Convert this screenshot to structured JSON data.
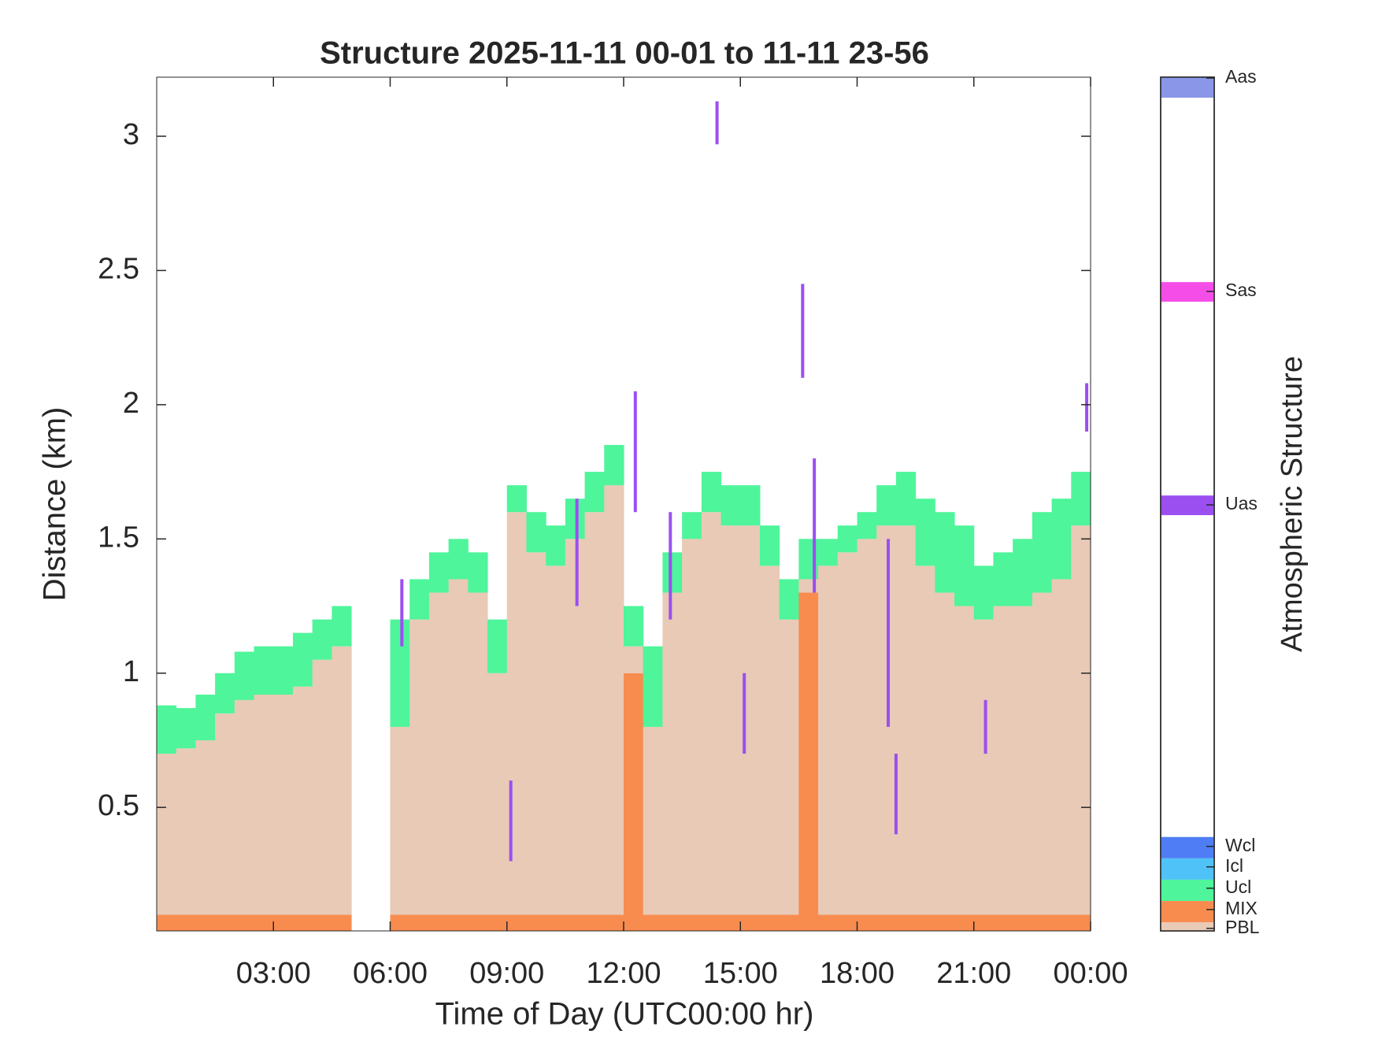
{
  "chart_data": {
    "type": "structure",
    "title": "Structure 2025-11-11 00-01 to 11-11 23-56",
    "x_label": "Time of Day (UTC00:00 hr)",
    "y_label": "Distance (km)",
    "colorbar_label": "Atmospheric Structure",
    "xlim": [
      0,
      24
    ],
    "xticks": [
      {
        "value": 3,
        "label": "03:00"
      },
      {
        "value": 6,
        "label": "06:00"
      },
      {
        "value": 9,
        "label": "09:00"
      },
      {
        "value": 12,
        "label": "12:00"
      },
      {
        "value": 15,
        "label": "15:00"
      },
      {
        "value": 18,
        "label": "18:00"
      },
      {
        "value": 21,
        "label": "21:00"
      },
      {
        "value": 24,
        "label": "00:00"
      }
    ],
    "ylim": [
      0.04,
      3.22
    ],
    "yticks": [
      0.5,
      1,
      1.5,
      2,
      2.5,
      3
    ],
    "bin_width": 0.5,
    "x": [
      0,
      0.5,
      1,
      1.5,
      2,
      2.5,
      3,
      3.5,
      4,
      4.5,
      5,
      5.5,
      6,
      6.5,
      7,
      7.5,
      8,
      8.5,
      9,
      9.5,
      10,
      10.5,
      11,
      11.5,
      12,
      12.5,
      13,
      13.5,
      14,
      14.5,
      15,
      15.5,
      16,
      16.5,
      17,
      17.5,
      18,
      18.5,
      19,
      19.5,
      20,
      20.5,
      21,
      21.5,
      22,
      22.5,
      23,
      23.5
    ],
    "series": [
      {
        "name": "MIX",
        "color": "#f88c4f",
        "values": [
          0.1,
          0.1,
          0.1,
          0.1,
          0.1,
          0.1,
          0.1,
          0.1,
          0.1,
          0.1,
          0,
          0,
          0.1,
          0.1,
          0.1,
          0.1,
          0.1,
          0.1,
          0.1,
          0.1,
          0.1,
          0.1,
          0.1,
          0.1,
          1.0,
          0.1,
          0.1,
          0.1,
          0.1,
          0.1,
          0.1,
          0.1,
          0.1,
          1.3,
          0.1,
          0.1,
          0.1,
          0.1,
          0.1,
          0.1,
          0.1,
          0.1,
          0.1,
          0.1,
          0.1,
          0.1,
          0.1,
          0.1
        ]
      },
      {
        "name": "PBL",
        "color": "#e8cab6",
        "values": [
          0.6,
          0.62,
          0.65,
          0.75,
          0.8,
          0.82,
          0.82,
          0.85,
          0.95,
          1.0,
          0,
          0,
          0.7,
          1.1,
          1.2,
          1.25,
          1.2,
          0.9,
          1.5,
          1.35,
          1.3,
          1.4,
          1.5,
          1.6,
          0.1,
          0.7,
          1.2,
          1.4,
          1.5,
          1.45,
          1.45,
          1.3,
          1.1,
          0.05,
          1.3,
          1.35,
          1.4,
          1.45,
          1.45,
          1.3,
          1.2,
          1.15,
          1.1,
          1.15,
          1.15,
          1.2,
          1.25,
          1.45
        ]
      },
      {
        "name": "Ucl",
        "color": "#4ef59a",
        "values": [
          0.18,
          0.15,
          0.17,
          0.15,
          0.18,
          0.18,
          0.18,
          0.2,
          0.15,
          0.15,
          0,
          0,
          0.4,
          0.15,
          0.15,
          0.15,
          0.15,
          0.2,
          0.1,
          0.15,
          0.15,
          0.15,
          0.15,
          0.15,
          0.15,
          0.3,
          0.15,
          0.1,
          0.15,
          0.15,
          0.15,
          0.15,
          0.15,
          0.15,
          0.1,
          0.1,
          0.1,
          0.15,
          0.2,
          0.25,
          0.3,
          0.3,
          0.2,
          0.2,
          0.25,
          0.3,
          0.3,
          0.2
        ]
      },
      {
        "name": "Uas",
        "color": "#9b4ff0",
        "x": [
          6.3,
          9.1,
          10.8,
          12.3,
          13.2,
          14.4,
          15.1,
          16.6,
          16.9,
          18.8,
          19.0,
          21.3,
          23.9
        ],
        "low": [
          1.1,
          0.3,
          1.25,
          1.6,
          1.2,
          2.97,
          0.7,
          2.1,
          1.3,
          0.8,
          0.4,
          0.7,
          1.9
        ],
        "high": [
          1.35,
          0.6,
          1.65,
          2.05,
          1.6,
          3.13,
          1.0,
          2.45,
          1.8,
          1.5,
          0.7,
          0.9,
          2.08
        ]
      }
    ],
    "extra_classes": [
      {
        "name": "Aas",
        "color": "#8a96e8"
      },
      {
        "name": "Sas",
        "color": "#f54ee8"
      },
      {
        "name": "Wcl",
        "color": "#4f7df5"
      },
      {
        "name": "Icl",
        "color": "#4fc3f7"
      }
    ]
  }
}
